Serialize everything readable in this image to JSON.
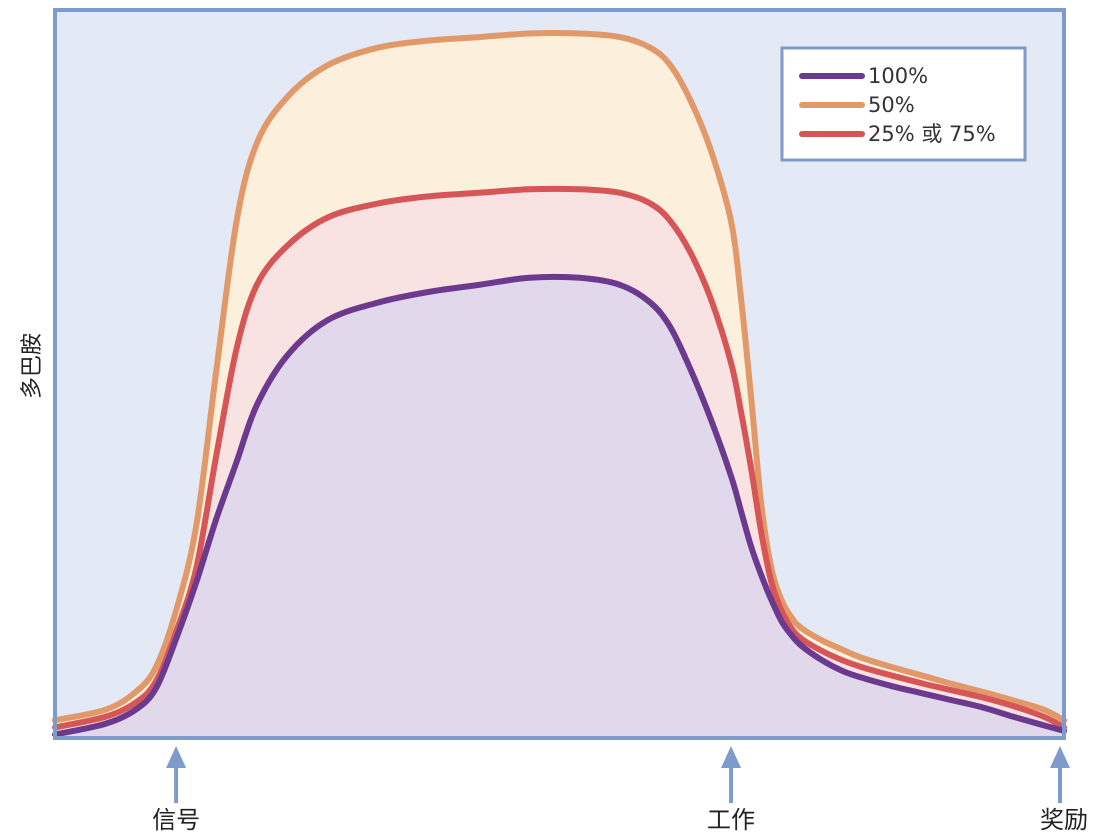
{
  "chart_data": {
    "type": "area",
    "title": "",
    "xlabel": "",
    "ylabel": "多巴胺",
    "x_range": [
      0,
      100
    ],
    "y_range": [
      0,
      100
    ],
    "grid": false,
    "legend_placement": "top-right",
    "x": [
      0,
      5,
      8,
      10,
      12,
      14,
      16,
      18,
      20,
      23,
      27,
      32,
      37,
      42,
      47,
      52,
      56,
      59,
      61,
      63,
      65,
      67,
      68,
      69,
      70,
      71,
      72,
      73,
      74,
      76,
      78,
      80,
      83,
      86,
      89,
      92,
      95,
      98,
      100
    ],
    "series": [
      {
        "name": "100%",
        "color": "#6B3A8E",
        "fill": "#E2D8EC",
        "values": [
          0.5,
          2,
          4,
          7,
          14,
          22,
          31,
          39,
          47,
          54,
          59,
          61.5,
          63,
          64,
          65,
          65,
          64,
          61.5,
          58,
          52,
          45,
          37,
          32,
          27,
          23,
          19.5,
          16.5,
          14.5,
          13,
          11,
          9.5,
          8.5,
          7.3,
          6.3,
          5.3,
          4.3,
          3,
          1.8,
          1
        ]
      },
      {
        "name": "50%",
        "color": "#E1996A",
        "fill": "#FCEFDC",
        "values": [
          2.5,
          4,
          6.5,
          10,
          18,
          30,
          52,
          73,
          84,
          90.5,
          95,
          97.5,
          98.5,
          99,
          99.5,
          99.5,
          99,
          97.5,
          95,
          90,
          83,
          73,
          62,
          48,
          33,
          24,
          19.5,
          17,
          15.5,
          13.8,
          12.5,
          11.3,
          10,
          8.8,
          7.6,
          6.5,
          5.3,
          4,
          2.5
        ]
      },
      {
        "name": "25% 或 75%",
        "color": "#D65658",
        "fill": "#F8E3E2",
        "values": [
          1.5,
          3,
          5,
          8,
          15,
          24,
          40,
          55,
          64,
          69.5,
          73.5,
          75.5,
          76.5,
          77,
          77.5,
          77.5,
          77,
          75.5,
          73,
          68.5,
          62,
          53,
          46,
          38,
          29,
          22,
          18,
          15.5,
          14,
          12.3,
          11,
          10,
          8.8,
          7.7,
          6.7,
          5.7,
          4.5,
          3,
          1.5
        ]
      }
    ],
    "events": [
      {
        "label": "信号",
        "x": 12
      },
      {
        "label": "工作",
        "x": 67
      },
      {
        "label": "奖励",
        "x": 100
      }
    ],
    "colors": {
      "background": "#E4E9F6",
      "frame": "#7E9CCB",
      "arrow": "#7E9CCB"
    }
  }
}
